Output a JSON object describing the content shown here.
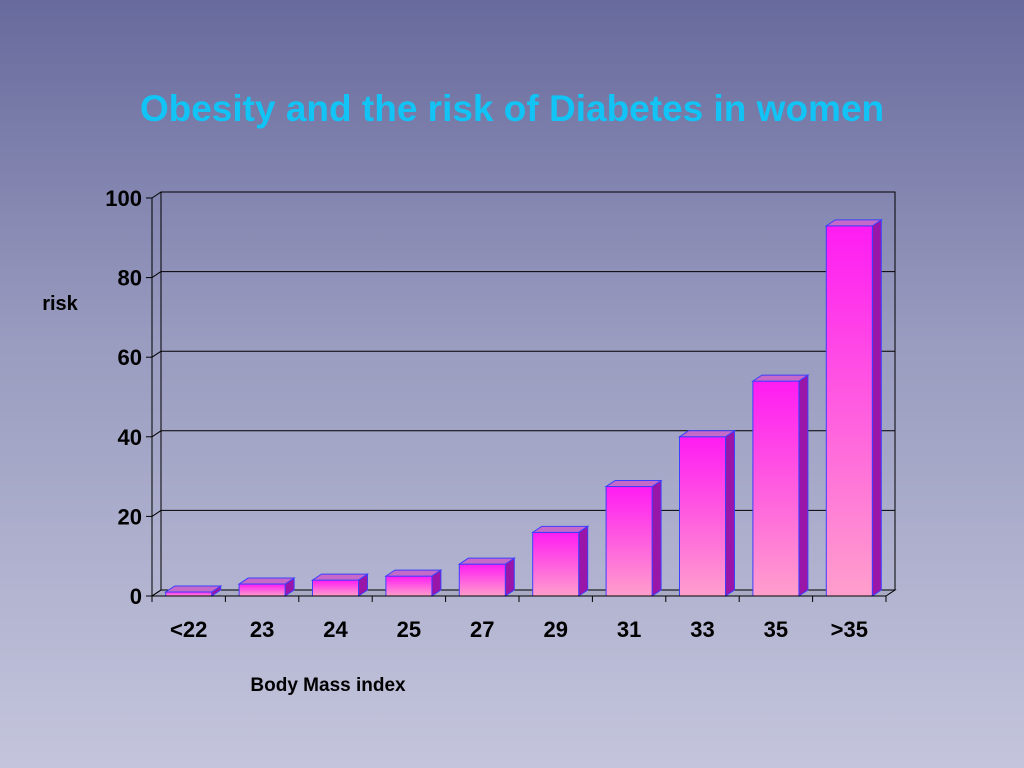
{
  "chart_data": {
    "type": "bar",
    "title": "Obesity and the risk of Diabetes in women",
    "xlabel": "Body Mass index",
    "ylabel": "risk",
    "categories": [
      "<22",
      "23",
      "24",
      "25",
      "27",
      "29",
      "31",
      "33",
      "35",
      ">35"
    ],
    "values": [
      1,
      3,
      4,
      5,
      8,
      16,
      27.5,
      40,
      54,
      93
    ],
    "ylim": [
      0,
      100
    ],
    "yticks": [
      "0",
      "20",
      "40",
      "60",
      "80",
      "100"
    ],
    "grid": true,
    "style": "3d-column",
    "colors": {
      "title": "#12c3f5",
      "bar_top": "#ff1cf3",
      "bar_bottom": "#ff9fcc",
      "bar_side": "#9a16a8",
      "bar_cap": "#c56ac9",
      "bar_outline": "#3d3fff"
    }
  }
}
